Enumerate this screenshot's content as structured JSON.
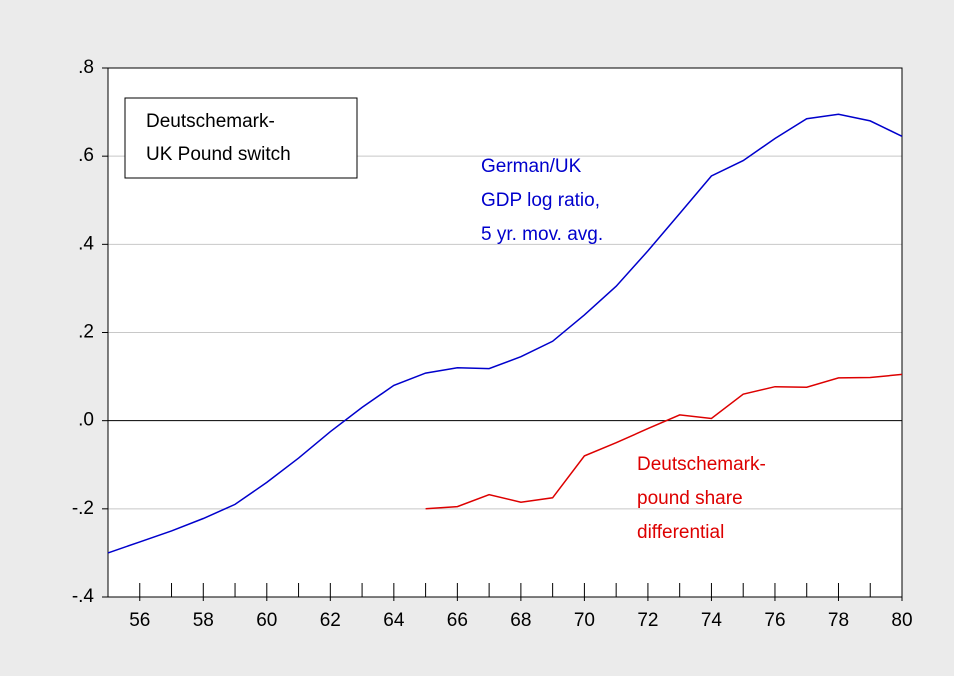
{
  "chart_data": {
    "type": "line",
    "x": [
      55,
      56,
      57,
      58,
      59,
      60,
      61,
      62,
      63,
      64,
      65,
      66,
      67,
      68,
      69,
      70,
      71,
      72,
      73,
      74,
      75,
      76,
      77,
      78,
      79,
      80
    ],
    "series": [
      {
        "label": [
          "German/UK",
          "GDP log ratio,",
          "5 yr. mov. avg."
        ],
        "color": "#0000cc",
        "values": [
          -0.3,
          -0.275,
          -0.25,
          -0.222,
          -0.19,
          -0.14,
          -0.085,
          -0.025,
          0.03,
          0.08,
          0.108,
          0.12,
          0.118,
          0.145,
          0.18,
          0.24,
          0.305,
          0.385,
          0.47,
          0.555,
          0.59,
          0.64,
          0.685,
          0.695,
          0.68,
          0.645
        ]
      },
      {
        "label": [
          "Deutschemark-",
          "pound share",
          "differential"
        ],
        "color": "#dd0000",
        "values": [
          null,
          null,
          null,
          null,
          null,
          null,
          null,
          null,
          null,
          null,
          -0.2,
          -0.195,
          -0.168,
          -0.185,
          -0.175,
          -0.08,
          -0.05,
          -0.018,
          0.013,
          0.005,
          0.06,
          0.077,
          0.076,
          0.097,
          0.098,
          0.105
        ]
      }
    ],
    "box_annotation": [
      "Deutschemark-",
      "UK Pound switch"
    ],
    "xlim": [
      55,
      80
    ],
    "xticks": [
      56,
      58,
      60,
      62,
      64,
      66,
      68,
      70,
      72,
      74,
      76,
      78,
      80
    ],
    "ylim": [
      -0.4,
      0.8
    ],
    "yticks": [
      {
        "value": -0.4,
        "label": "-.4"
      },
      {
        "value": -0.2,
        "label": "-.2"
      },
      {
        "value": 0,
        "label": ".0"
      },
      {
        "value": 0.2,
        "label": ".2"
      },
      {
        "value": 0.4,
        "label": ".4"
      },
      {
        "value": 0.6,
        "label": ".6"
      },
      {
        "value": 0.8,
        "label": ".8"
      }
    ],
    "grid": true
  }
}
